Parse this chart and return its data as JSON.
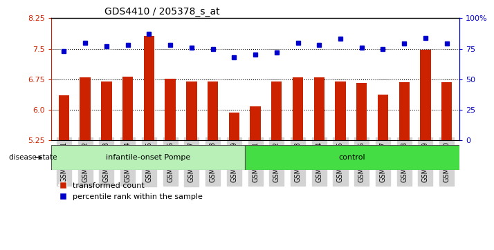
{
  "title": "GDS4410 / 205378_s_at",
  "samples": [
    "GSM947471",
    "GSM947472",
    "GSM947473",
    "GSM947474",
    "GSM947475",
    "GSM947476",
    "GSM947477",
    "GSM947478",
    "GSM947479",
    "GSM947461",
    "GSM947462",
    "GSM947463",
    "GSM947464",
    "GSM947465",
    "GSM947466",
    "GSM947467",
    "GSM947468",
    "GSM947469",
    "GSM947470"
  ],
  "bar_values": [
    6.35,
    6.8,
    6.7,
    6.82,
    7.82,
    6.76,
    6.7,
    6.7,
    5.94,
    6.08,
    6.7,
    6.8,
    6.8,
    6.7,
    6.67,
    6.38,
    6.68,
    7.47,
    6.68
  ],
  "dot_values": [
    73,
    80,
    77,
    78,
    87,
    78,
    76,
    75,
    68,
    70,
    72,
    80,
    78,
    83,
    76,
    75,
    79,
    84,
    79
  ],
  "group_labels": [
    "infantile-onset Pompe",
    "control"
  ],
  "group_counts": [
    9,
    10
  ],
  "group_color_light": "#b8f0b8",
  "group_color_dark": "#44dd44",
  "bar_color": "#cc2200",
  "dot_color": "#0000cc",
  "ylim_left": [
    5.25,
    8.25
  ],
  "ylim_right": [
    0,
    100
  ],
  "yticks_left": [
    5.25,
    6.0,
    6.75,
    7.5,
    8.25
  ],
  "yticks_right": [
    0,
    25,
    50,
    75,
    100
  ],
  "ytick_labels_right": [
    "0",
    "25",
    "50",
    "75",
    "100%"
  ],
  "hlines": [
    6.0,
    6.75,
    7.5
  ],
  "legend_items": [
    "transformed count",
    "percentile rank within the sample"
  ],
  "disease_state_label": "disease state"
}
